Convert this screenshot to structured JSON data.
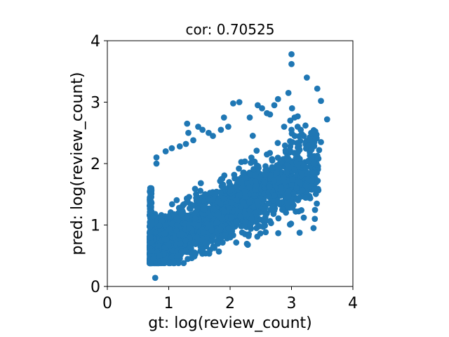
{
  "chart_data": {
    "type": "scatter",
    "title": "cor: 0.70525",
    "xlabel": "gt: log(review_count)",
    "ylabel": "pred: log(review_count)",
    "xlim": [
      0,
      4
    ],
    "ylim": [
      0,
      4
    ],
    "xticks": [
      "0",
      "1",
      "2",
      "3",
      "4"
    ],
    "yticks": [
      "0",
      "1",
      "2",
      "3",
      "4"
    ],
    "grid": false,
    "legend": "none",
    "correlation": 0.70525,
    "marker_color": "#1f77b4",
    "series": [
      {
        "points": [
          [
            0.78,
            0.14
          ],
          [
            0.7,
            0.38
          ],
          [
            0.75,
            0.45
          ],
          [
            0.85,
            0.5
          ],
          [
            1.15,
            0.5
          ],
          [
            1.55,
            0.6
          ],
          [
            2.3,
            0.82
          ],
          [
            0.7,
            1.6
          ],
          [
            0.8,
            2.0
          ],
          [
            0.8,
            2.1
          ],
          [
            0.95,
            2.2
          ],
          [
            1.05,
            2.25
          ],
          [
            1.18,
            2.28
          ],
          [
            1.28,
            2.32
          ],
          [
            1.4,
            2.38
          ],
          [
            1.3,
            2.65
          ],
          [
            1.32,
            2.5
          ],
          [
            1.48,
            2.6
          ],
          [
            1.55,
            2.55
          ],
          [
            1.65,
            2.5
          ],
          [
            1.72,
            2.45
          ],
          [
            1.85,
            2.55
          ],
          [
            1.9,
            2.75
          ],
          [
            1.97,
            2.6
          ],
          [
            2.05,
            2.98
          ],
          [
            2.15,
            3.0
          ],
          [
            2.32,
            2.75
          ],
          [
            2.45,
            2.95
          ],
          [
            2.52,
            2.9
          ],
          [
            2.6,
            2.82
          ],
          [
            2.65,
            2.8
          ],
          [
            2.72,
            2.95
          ],
          [
            2.78,
            3.05
          ],
          [
            2.88,
            2.6
          ],
          [
            2.95,
            3.15
          ],
          [
            2.98,
            2.7
          ],
          [
            3.0,
            2.55
          ],
          [
            3.05,
            2.75
          ],
          [
            3.1,
            2.6
          ],
          [
            3.15,
            2.55
          ],
          [
            3.2,
            2.45
          ],
          [
            3.28,
            2.3
          ],
          [
            3.32,
            2.5
          ],
          [
            3.38,
            2.5
          ],
          [
            3.25,
            3.4
          ],
          [
            3.42,
            3.22
          ],
          [
            3.48,
            3.02
          ],
          [
            3.58,
            2.72
          ],
          [
            3.48,
            2.35
          ],
          [
            3.45,
            2.22
          ],
          [
            3.35,
            1.85
          ],
          [
            3.38,
            1.58
          ],
          [
            3.1,
            1.95
          ],
          [
            3.05,
            1.9
          ],
          [
            3.0,
            1.65
          ],
          [
            2.95,
            1.55
          ],
          [
            3.08,
            1.6
          ],
          [
            2.7,
            1.4
          ],
          [
            2.62,
            1.35
          ],
          [
            2.42,
            1.2
          ],
          [
            2.35,
            1.1
          ],
          [
            2.25,
            1.05
          ],
          [
            2.18,
            0.98
          ],
          [
            2.1,
            1.05
          ],
          [
            3.0,
            3.62
          ],
          [
            3.0,
            3.78
          ],
          [
            3.2,
            1.12
          ],
          [
            3.38,
            1.1
          ],
          [
            2.85,
            1.25
          ],
          [
            2.72,
            1.48
          ]
        ]
      }
    ]
  }
}
